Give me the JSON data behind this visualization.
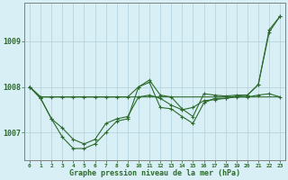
{
  "xlabel": "Graphe pression niveau de la mer (hPa)",
  "hours": [
    0,
    1,
    2,
    3,
    4,
    5,
    6,
    7,
    8,
    9,
    10,
    11,
    12,
    13,
    14,
    15,
    16,
    17,
    18,
    19,
    20,
    21,
    22,
    23
  ],
  "line_smooth": [
    1008.0,
    1007.78,
    1007.78,
    1007.78,
    1007.78,
    1007.78,
    1007.78,
    1007.78,
    1007.78,
    1007.78,
    1007.78,
    1007.78,
    1007.78,
    1007.78,
    1007.78,
    1007.78,
    1007.78,
    1007.78,
    1007.78,
    1007.78,
    1007.78,
    1007.78,
    1007.78,
    1007.78
  ],
  "line_mid": [
    1008.0,
    1007.75,
    1007.3,
    1007.1,
    1006.85,
    1006.75,
    1006.85,
    1007.2,
    1007.3,
    1007.35,
    1007.78,
    1007.82,
    1007.75,
    1007.6,
    1007.5,
    1007.55,
    1007.7,
    1007.72,
    1007.75,
    1007.78,
    1007.78,
    1007.82,
    1007.85,
    1007.78
  ],
  "line_jagged": [
    1008.0,
    1007.75,
    1007.3,
    1006.9,
    1006.65,
    1006.65,
    1006.75,
    1007.0,
    1007.25,
    1007.3,
    1008.0,
    1008.1,
    1007.55,
    1007.52,
    1007.35,
    1007.2,
    1007.65,
    1007.75,
    1007.75,
    1007.8,
    1007.82,
    1008.05,
    1009.2,
    1009.55
  ],
  "line_upper": [
    1008.0,
    1007.78,
    1007.78,
    1007.78,
    1007.78,
    1007.78,
    1007.78,
    1007.78,
    1007.78,
    1007.78,
    1008.0,
    1008.15,
    1007.82,
    1007.78,
    1007.52,
    1007.35,
    1007.85,
    1007.82,
    1007.8,
    1007.82,
    1007.82,
    1008.05,
    1009.25,
    1009.55
  ],
  "line_color": "#2d6a2d",
  "bg_color": "#d8eff5",
  "grid_color": "#b0d0dc",
  "label_color": "#2d6a2d",
  "ylim": [
    1006.4,
    1009.85
  ],
  "yticks": [
    1007,
    1008,
    1009
  ],
  "marker": "D",
  "marker_size": 2.0,
  "linewidth": 0.8
}
